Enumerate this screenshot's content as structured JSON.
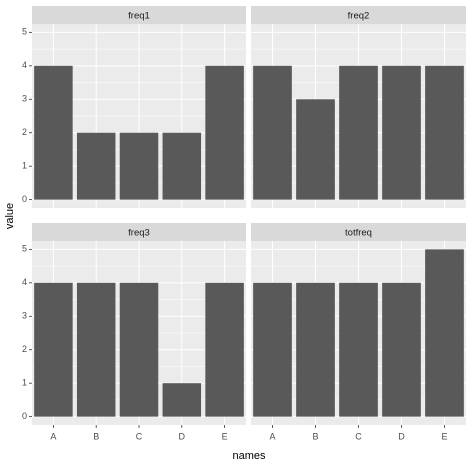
{
  "chart_data": {
    "type": "bar",
    "xlabel": "names",
    "ylabel": "value",
    "categories": [
      "A",
      "B",
      "C",
      "D",
      "E"
    ],
    "ylim": [
      -0.25,
      5.25
    ],
    "yticks": [
      0,
      1,
      2,
      3,
      4,
      5
    ],
    "grid": true,
    "color": "#595959",
    "panels": [
      {
        "title": "freq1",
        "values": [
          4,
          2,
          2,
          2,
          4
        ]
      },
      {
        "title": "freq2",
        "values": [
          4,
          3,
          4,
          4,
          4
        ]
      },
      {
        "title": "freq3",
        "values": [
          4,
          4,
          4,
          1,
          4
        ]
      },
      {
        "title": "totfreq",
        "values": [
          4,
          4,
          4,
          4,
          5
        ]
      }
    ]
  }
}
